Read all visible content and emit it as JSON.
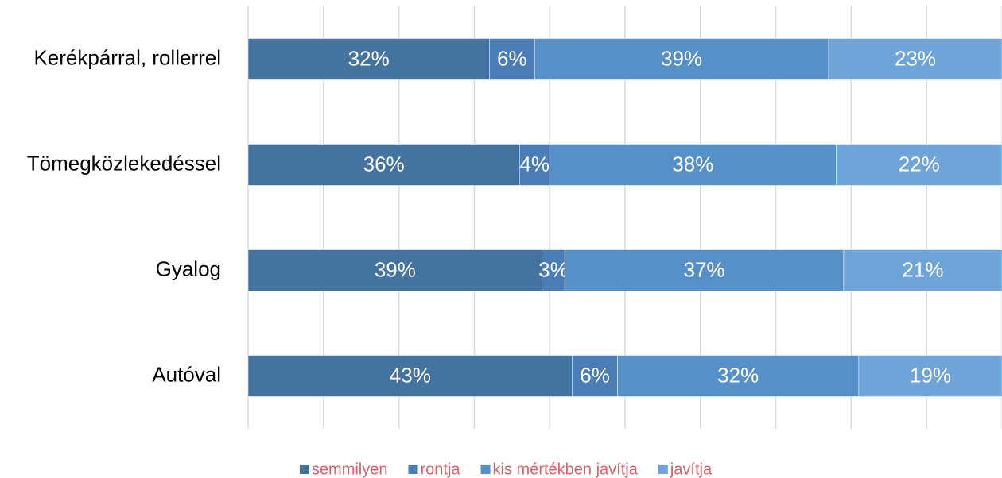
{
  "chart_data": {
    "type": "stacked_barh",
    "categories": [
      "Kerékpárral, rollerrel",
      "Tömegközlekedéssel",
      "Gyalog",
      "Autóval"
    ],
    "series": [
      {
        "name": "semmilyen",
        "color": "#44739f",
        "values": [
          32,
          36,
          39,
          43
        ],
        "value_labels": [
          "32%",
          "36%",
          "39%",
          "43%"
        ]
      },
      {
        "name": "rontja",
        "color": "#4a7db5",
        "values": [
          6,
          4,
          3,
          6
        ],
        "value_labels": [
          "6%",
          "4%",
          "3%",
          "6%"
        ]
      },
      {
        "name": "kis mértékben javítja",
        "color": "#5590c8",
        "values": [
          39,
          38,
          37,
          32
        ],
        "value_labels": [
          "39%",
          "38%",
          "37%",
          "32%"
        ]
      },
      {
        "name": "javítja",
        "color": "#6fa4d9",
        "values": [
          23,
          22,
          21,
          19
        ],
        "value_labels": [
          "23%",
          "22%",
          "21%",
          "19%"
        ]
      }
    ],
    "xlim": [
      0,
      100
    ],
    "xticks": [
      0,
      10,
      20,
      30,
      40,
      50,
      60,
      70,
      80,
      90,
      100
    ],
    "grid": true,
    "legend": "bottom"
  }
}
